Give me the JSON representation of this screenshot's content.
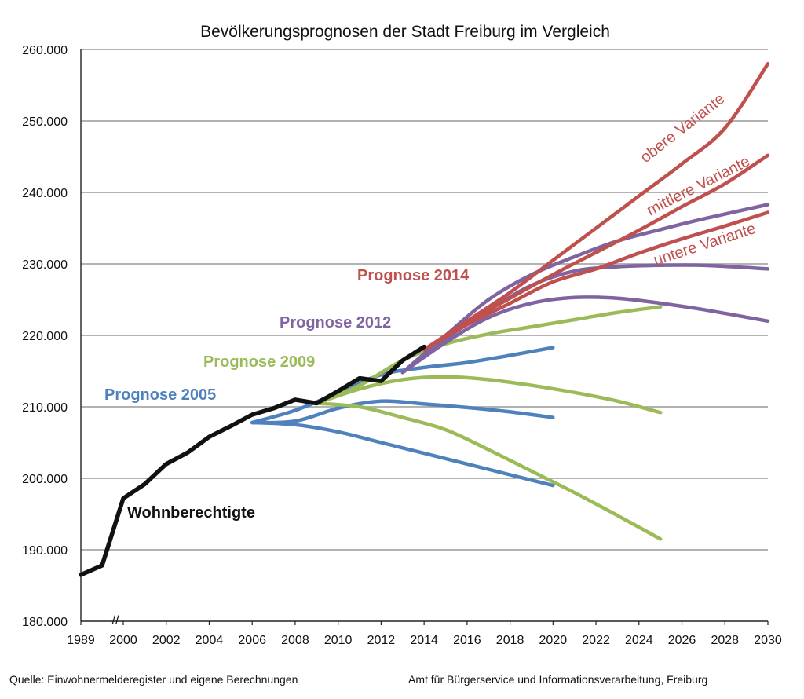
{
  "chart_data": {
    "type": "line",
    "title": "Bevölkerungsprognosen der Stadt Freiburg im Vergleich",
    "ylim": [
      180000,
      260000
    ],
    "y_ticks": [
      {
        "v": 180000,
        "label": "180.000"
      },
      {
        "v": 190000,
        "label": "190.000"
      },
      {
        "v": 200000,
        "label": "200.000"
      },
      {
        "v": 210000,
        "label": "210.000"
      },
      {
        "v": 220000,
        "label": "220.000"
      },
      {
        "v": 230000,
        "label": "230.000"
      },
      {
        "v": 240000,
        "label": "240.000"
      },
      {
        "v": 250000,
        "label": "250.000"
      },
      {
        "v": 260000,
        "label": "260.000"
      }
    ],
    "x_ticks": [
      "1989",
      "2000",
      "2002",
      "2004",
      "2006",
      "2008",
      "2010",
      "2012",
      "2014",
      "2016",
      "2018",
      "2020",
      "2022",
      "2024",
      "2026",
      "2028",
      "2030"
    ],
    "axis_break": "//",
    "grid": "horizontal",
    "colors": {
      "actual": "#111111",
      "p2005": "#4f81bd",
      "p2009": "#9bbb59",
      "p2012": "#8064a2",
      "p2014": "#c0504d"
    },
    "series": [
      {
        "name": "Wohnberechtigte",
        "key": "actual",
        "points": [
          [
            1989,
            186500
          ],
          [
            1999,
            187800
          ],
          [
            2000,
            197200
          ],
          [
            2001,
            199200
          ],
          [
            2002,
            202000
          ],
          [
            2003,
            203600
          ],
          [
            2004,
            205800
          ],
          [
            2005,
            207300
          ],
          [
            2006,
            208900
          ],
          [
            2007,
            209800
          ],
          [
            2008,
            211000
          ],
          [
            2009,
            210500
          ],
          [
            2010,
            212200
          ],
          [
            2011,
            214000
          ],
          [
            2012,
            213600
          ],
          [
            2013,
            216500
          ],
          [
            2014,
            218400
          ]
        ]
      },
      {
        "name": "Prognose 2005",
        "key": "p2005",
        "lines": [
          [
            [
              2006,
              207800
            ],
            [
              2008,
              208000
            ],
            [
              2010,
              209800
            ],
            [
              2012,
              210800
            ],
            [
              2014,
              210400
            ],
            [
              2016,
              209900
            ],
            [
              2018,
              209300
            ],
            [
              2020,
              208500
            ]
          ],
          [
            [
              2006,
              207800
            ],
            [
              2008,
              209500
            ],
            [
              2010,
              212000
            ],
            [
              2012,
              214500
            ],
            [
              2014,
              215500
            ],
            [
              2016,
              216200
            ],
            [
              2018,
              217200
            ],
            [
              2020,
              218300
            ]
          ],
          [
            [
              2006,
              207800
            ],
            [
              2008,
              207500
            ],
            [
              2010,
              206500
            ],
            [
              2012,
              205000
            ],
            [
              2014,
              203500
            ],
            [
              2016,
              202000
            ],
            [
              2018,
              200500
            ],
            [
              2020,
              199000
            ]
          ]
        ]
      },
      {
        "name": "Prognose 2009",
        "key": "p2009",
        "lines": [
          [
            [
              2009,
              210500
            ],
            [
              2011,
              212500
            ],
            [
              2013,
              213800
            ],
            [
              2015,
              214200
            ],
            [
              2017,
              213800
            ],
            [
              2019,
              213000
            ],
            [
              2021,
              212000
            ],
            [
              2023,
              210800
            ],
            [
              2025,
              209200
            ]
          ],
          [
            [
              2009,
              210500
            ],
            [
              2011,
              210000
            ],
            [
              2013,
              208500
            ],
            [
              2015,
              206800
            ],
            [
              2017,
              204000
            ],
            [
              2019,
              201000
            ],
            [
              2021,
              198000
            ],
            [
              2023,
              194800
            ],
            [
              2025,
              191500
            ]
          ],
          [
            [
              2009,
              210500
            ],
            [
              2011,
              213000
            ],
            [
              2013,
              216500
            ],
            [
              2015,
              218800
            ],
            [
              2017,
              220200
            ],
            [
              2019,
              221200
            ],
            [
              2021,
              222200
            ],
            [
              2023,
              223200
            ],
            [
              2025,
              224000
            ]
          ]
        ]
      },
      {
        "name": "Prognose 2012",
        "key": "p2012",
        "lines": [
          [
            [
              2013,
              214800
            ],
            [
              2015,
              219500
            ],
            [
              2017,
              223500
            ],
            [
              2019,
              227000
            ],
            [
              2021,
              229000
            ],
            [
              2023,
              229600
            ],
            [
              2025,
              229800
            ],
            [
              2027,
              229800
            ],
            [
              2030,
              229300
            ]
          ],
          [
            [
              2013,
              214800
            ],
            [
              2015,
              219000
            ],
            [
              2017,
              222500
            ],
            [
              2019,
              224500
            ],
            [
              2021,
              225300
            ],
            [
              2023,
              225200
            ],
            [
              2025,
              224500
            ],
            [
              2027,
              223600
            ],
            [
              2030,
              222000
            ]
          ],
          [
            [
              2013,
              214800
            ],
            [
              2015,
              220000
            ],
            [
              2017,
              225000
            ],
            [
              2019,
              228500
            ],
            [
              2021,
              231000
            ],
            [
              2023,
              233200
            ],
            [
              2025,
              234800
            ],
            [
              2027,
              236300
            ],
            [
              2030,
              238300
            ]
          ]
        ]
      },
      {
        "name": "Prognose 2014",
        "key": "p2014",
        "lines": [
          [
            [
              2014,
              218000
            ],
            [
              2016,
              222000
            ],
            [
              2018,
              226000
            ],
            [
              2020,
              230500
            ],
            [
              2022,
              235000
            ],
            [
              2024,
              239500
            ],
            [
              2026,
              244000
            ],
            [
              2028,
              249000
            ],
            [
              2030,
              258000
            ]
          ],
          [
            [
              2014,
              218000
            ],
            [
              2016,
              221800
            ],
            [
              2018,
              225200
            ],
            [
              2020,
              228500
            ],
            [
              2022,
              231600
            ],
            [
              2024,
              234700
            ],
            [
              2026,
              238000
            ],
            [
              2028,
              241200
            ],
            [
              2030,
              245200
            ]
          ],
          [
            [
              2014,
              218000
            ],
            [
              2016,
              221500
            ],
            [
              2018,
              224500
            ],
            [
              2020,
              227500
            ],
            [
              2022,
              229300
            ],
            [
              2024,
              231500
            ],
            [
              2026,
              233500
            ],
            [
              2028,
              235300
            ],
            [
              2030,
              237200
            ]
          ]
        ]
      }
    ],
    "labels": {
      "actual": "Wohnberechtigte",
      "p2005": "Prognose 2005",
      "p2009": "Prognose 2009",
      "p2012": "Prognose 2012",
      "p2014": "Prognose 2014",
      "obere": "obere Variante",
      "mittlere": "mittlere Variante",
      "untere": "untere Variante"
    }
  },
  "footer": {
    "source": "Quelle: Einwohnermelderegister und eigene Berechnungen",
    "publisher": "Amt für Bürgerservice und Informationsverarbeitung, Freiburg"
  }
}
